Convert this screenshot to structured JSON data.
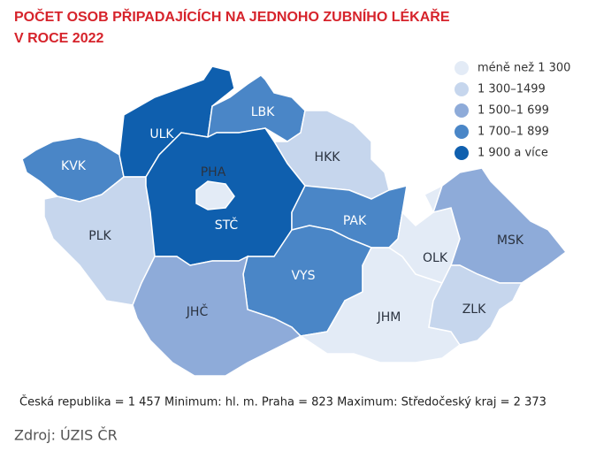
{
  "title": [
    "POČET OSOB PŘIPADAJÍCÍCH NA JEDNOHO ZUBNÍHO LÉKAŘE",
    "V ROCE 2022"
  ],
  "legend": [
    {
      "label": "méně než 1 300",
      "color": "#e3ebf6"
    },
    {
      "label": "1 300–1499",
      "color": "#c6d6ed"
    },
    {
      "label": "1 500–1 699",
      "color": "#8eabd9"
    },
    {
      "label": "1 700–1 899",
      "color": "#4a86c7"
    },
    {
      "label": "1 900 a více",
      "color": "#0f5fae"
    }
  ],
  "regions": [
    {
      "label": "KVK",
      "color": "#4a86c7"
    },
    {
      "label": "ULK",
      "color": "#0f5fae"
    },
    {
      "label": "LBK",
      "color": "#4a86c7"
    },
    {
      "label": "HKK",
      "color": "#c6d6ed"
    },
    {
      "label": "PLK",
      "color": "#c6d6ed"
    },
    {
      "label": "STČ",
      "color": "#0f5fae"
    },
    {
      "label": "PHA",
      "color": "#e3ebf6"
    },
    {
      "label": "PAK",
      "color": "#4a86c7"
    },
    {
      "label": "VYS",
      "color": "#4a86c7"
    },
    {
      "label": "JHČ",
      "color": "#8eabd9"
    },
    {
      "label": "JHM",
      "color": "#e3ebf6"
    },
    {
      "label": "OLK",
      "color": "#e3ebf6"
    },
    {
      "label": "MSK",
      "color": "#8eabd9"
    },
    {
      "label": "ZLK",
      "color": "#c6d6ed"
    }
  ],
  "footnote": "Česká republika = 1 457  Minimum:  hl. m. Praha = 823  Maximum:  Středočeský kraj = 2 373",
  "source": "Zdroj: ÚZIS ČR"
}
